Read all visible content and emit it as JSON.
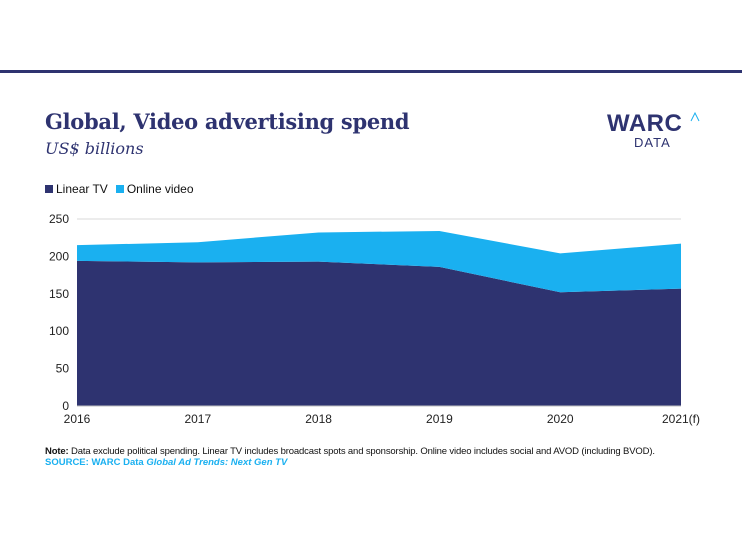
{
  "header": {
    "title": "Global, Video advertising spend",
    "subtitle": "US$ billions"
  },
  "logo": {
    "main": "WARC",
    "sub": "DATA"
  },
  "colors": {
    "linear_tv": "#2e3370",
    "online_video": "#1ab0f0",
    "grid": "#d9d9d9",
    "rule": "#2e3370"
  },
  "chart_data": {
    "type": "area",
    "stacked": true,
    "categories": [
      "2016",
      "2017",
      "2018",
      "2019",
      "2020",
      "2021(f)"
    ],
    "series": [
      {
        "name": "Linear TV",
        "values": [
          194,
          192,
          193,
          186,
          152,
          157
        ]
      },
      {
        "name": "Online video",
        "values": [
          21,
          27,
          39,
          48,
          52,
          60
        ]
      }
    ],
    "yticks": [
      "0",
      "50",
      "100",
      "150",
      "200",
      "250"
    ],
    "ylim": [
      0,
      250
    ],
    "legend_position": "top-left",
    "grid": true
  },
  "footer": {
    "note_label": "Note:",
    "note_text": " Data exclude political spending. Linear TV includes broadcast spots and sponsorship. Online video includes social and AVOD (including BVOD).",
    "source_label": "SOURCE:",
    "source_text": " WARC Data ",
    "source_title": "Global Ad Trends: Next Gen TV"
  }
}
